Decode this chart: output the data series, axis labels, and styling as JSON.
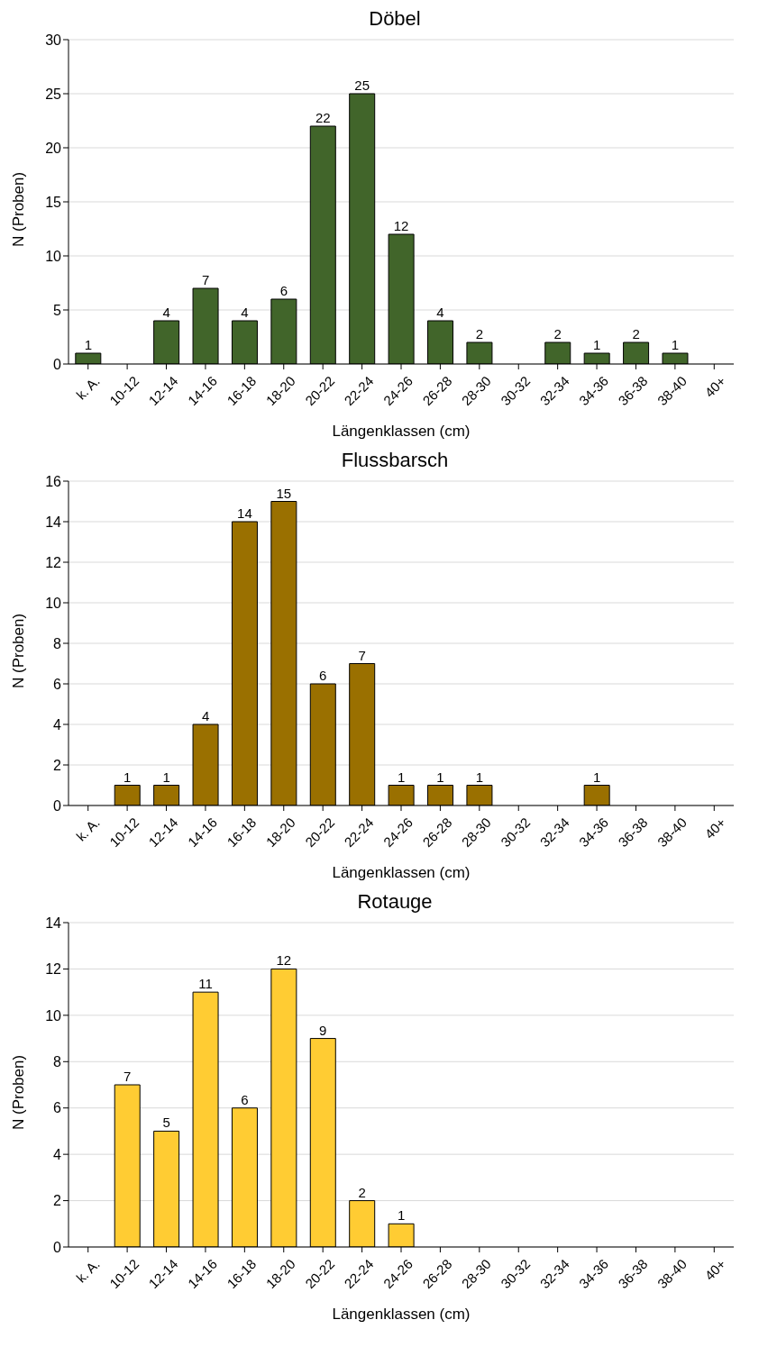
{
  "chart_data": [
    {
      "type": "bar",
      "title": "Döbel",
      "xlabel": "Längenklassen  (cm)",
      "ylabel": "N (Proben)",
      "categories": [
        "k. A.",
        "10-12",
        "12-14",
        "14-16",
        "16-18",
        "18-20",
        "20-22",
        "22-24",
        "24-26",
        "26-28",
        "28-30",
        "30-32",
        "32-34",
        "34-36",
        "36-38",
        "38-40",
        "40+"
      ],
      "values": [
        1,
        0,
        4,
        7,
        4,
        6,
        22,
        25,
        12,
        4,
        2,
        0,
        2,
        1,
        2,
        1,
        0
      ],
      "value_labels": [
        "1",
        null,
        "4",
        "7",
        "4",
        "6",
        "22",
        "25",
        "12",
        "4",
        "2",
        null,
        "2",
        "1",
        "2",
        "1",
        null
      ],
      "color": "#41652a",
      "ylim": [
        0,
        30
      ],
      "yticks": [
        0,
        5,
        10,
        15,
        20,
        25,
        30
      ],
      "grid": "y",
      "legend": false
    },
    {
      "type": "bar",
      "title": "Flussbarsch",
      "xlabel": "Längenklassen  (cm)",
      "ylabel": "N (Proben)",
      "categories": [
        "k. A.",
        "10-12",
        "12-14",
        "14-16",
        "16-18",
        "18-20",
        "20-22",
        "22-24",
        "24-26",
        "26-28",
        "28-30",
        "30-32",
        "32-34",
        "34-36",
        "36-38",
        "38-40",
        "40+"
      ],
      "values": [
        0,
        1,
        1,
        4,
        14,
        15,
        6,
        7,
        1,
        1,
        1,
        0,
        0,
        1,
        0,
        0,
        0
      ],
      "value_labels": [
        null,
        "1",
        "1",
        "4",
        "14",
        "15",
        "6",
        "7",
        "1",
        "1",
        "1",
        null,
        null,
        "1",
        null,
        null,
        null
      ],
      "color": "#9a7000",
      "ylim": [
        0,
        16
      ],
      "yticks": [
        0,
        2,
        4,
        6,
        8,
        10,
        12,
        14,
        16
      ],
      "grid": "y",
      "legend": false
    },
    {
      "type": "bar",
      "title": "Rotauge",
      "xlabel": "Längenklassen  (cm)",
      "ylabel": "N (Proben)",
      "categories": [
        "k. A.",
        "10-12",
        "12-14",
        "14-16",
        "16-18",
        "18-20",
        "20-22",
        "22-24",
        "24-26",
        "26-28",
        "28-30",
        "30-32",
        "32-34",
        "34-36",
        "36-38",
        "38-40",
        "40+"
      ],
      "values": [
        0,
        7,
        5,
        11,
        6,
        12,
        9,
        2,
        1,
        0,
        0,
        0,
        0,
        0,
        0,
        0,
        0
      ],
      "value_labels": [
        null,
        "7",
        "5",
        "11",
        "6",
        "12",
        "9",
        "2",
        "1",
        null,
        null,
        null,
        null,
        null,
        null,
        null,
        null
      ],
      "color": "#ffcc33",
      "ylim": [
        0,
        14
      ],
      "yticks": [
        0,
        2,
        4,
        6,
        8,
        10,
        12,
        14
      ],
      "grid": "y",
      "legend": false
    }
  ]
}
